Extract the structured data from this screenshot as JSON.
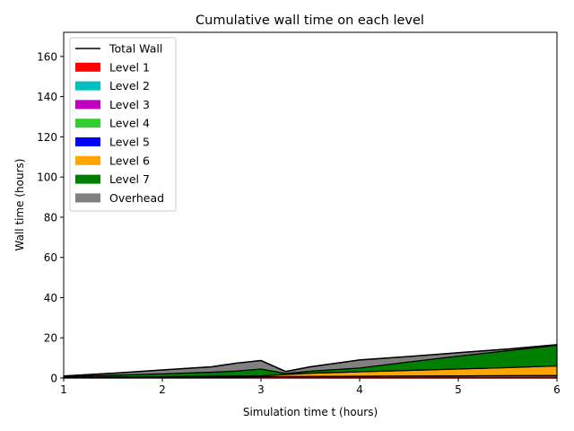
{
  "chart_data": {
    "type": "area",
    "title": "Cumulative wall time on each level",
    "xlabel": "Simulation time t (hours)",
    "ylabel": "Wall time (hours)",
    "xlim": [
      1,
      6
    ],
    "ylim": [
      0,
      172
    ],
    "xticks": [
      1,
      2,
      3,
      4,
      5,
      6
    ],
    "yticks": [
      0,
      20,
      40,
      60,
      80,
      100,
      120,
      140,
      160
    ],
    "grid": false,
    "legend_position": "top-left",
    "x": [
      1,
      1.5,
      2,
      2.5,
      2.75,
      3,
      3.25,
      3.5,
      4,
      4.5,
      5,
      5.5,
      6
    ],
    "series": [
      {
        "name": "Level 1",
        "color": "#ff0000",
        "values": [
          0.3,
          0.4,
          0.5,
          0.6,
          0.65,
          0.7,
          0.75,
          0.8,
          0.9,
          1.0,
          1.1,
          1.2,
          1.3
        ]
      },
      {
        "name": "Level 2",
        "color": "#00bfbf",
        "values": [
          0,
          0,
          0,
          0,
          0,
          0,
          0,
          0,
          0,
          0,
          0,
          0,
          0
        ]
      },
      {
        "name": "Level 3",
        "color": "#bf00bf",
        "values": [
          0,
          0,
          0,
          0,
          0,
          0,
          0,
          0,
          0,
          0,
          0,
          0,
          0
        ]
      },
      {
        "name": "Level 4",
        "color": "#32cd32",
        "values": [
          0,
          0,
          0,
          0,
          0,
          0,
          0,
          0,
          0,
          0,
          0,
          0,
          0
        ]
      },
      {
        "name": "Level 5",
        "color": "#0000ff",
        "values": [
          0,
          0,
          0,
          0,
          0,
          0,
          0,
          0,
          0,
          0,
          0,
          0,
          0
        ]
      },
      {
        "name": "Level 6",
        "color": "#ffa500",
        "values": [
          0,
          0.1,
          0.2,
          0.3,
          0.35,
          0.4,
          1.0,
          1.6,
          2.2,
          2.8,
          3.4,
          4.0,
          4.7
        ]
      },
      {
        "name": "Level 7",
        "color": "#008000",
        "values": [
          0.4,
          0.9,
          1.4,
          2.0,
          2.5,
          3.4,
          0.5,
          1.0,
          1.9,
          4.2,
          6.4,
          8.4,
          10.3
        ]
      },
      {
        "name": "Overhead",
        "color": "#808080",
        "values": [
          0.3,
          1.0,
          1.9,
          2.7,
          3.9,
          4.2,
          1.0,
          2.2,
          4.0,
          2.7,
          1.7,
          0.8,
          0.3
        ]
      }
    ],
    "total_wall": {
      "name": "Total Wall",
      "color": "#000000",
      "values": [
        1.0,
        2.4,
        4.0,
        5.6,
        7.4,
        8.7,
        3.25,
        5.6,
        9.0,
        10.7,
        12.6,
        14.4,
        16.6
      ]
    }
  }
}
